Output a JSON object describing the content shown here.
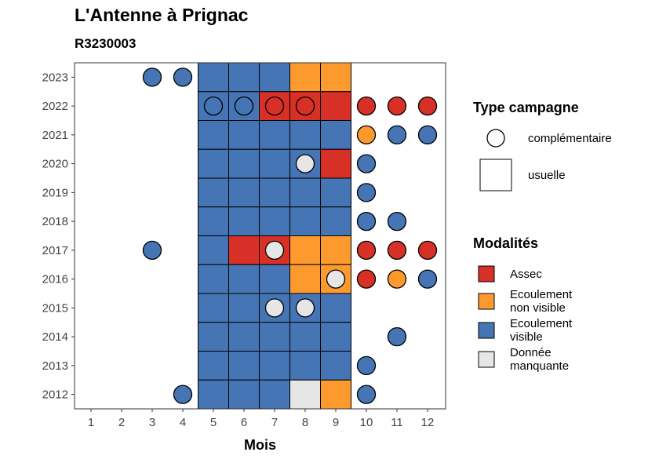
{
  "chart_data": {
    "type": "heatmap",
    "title": "L'Antenne à Prignac",
    "subtitle": "R3230003",
    "xlabel": "Mois",
    "ylabel": "",
    "months": [
      1,
      2,
      3,
      4,
      5,
      6,
      7,
      8,
      9,
      10,
      11,
      12
    ],
    "years": [
      2012,
      2013,
      2014,
      2015,
      2016,
      2017,
      2018,
      2019,
      2020,
      2021,
      2022,
      2023
    ],
    "usual_months": [
      5,
      6,
      7,
      8,
      9
    ],
    "legend_type": {
      "title": "Type campagne",
      "items": [
        {
          "key": "complementaire",
          "label": "complémentaire",
          "shape": "circle"
        },
        {
          "key": "usuelle",
          "label": "usuelle",
          "shape": "square"
        }
      ]
    },
    "legend_modalites": {
      "title": "Modalités",
      "items": [
        {
          "key": "assec",
          "lines": [
            "Assec"
          ],
          "color": "#d73027"
        },
        {
          "key": "non_visible",
          "lines": [
            "Ecoulement",
            "non visible"
          ],
          "color": "#fd9a2e"
        },
        {
          "key": "visible",
          "lines": [
            "Ecoulement",
            "visible"
          ],
          "color": "#4575b4"
        },
        {
          "key": "manquante",
          "lines": [
            "Donnée",
            "manquante"
          ],
          "color": "#e6e6e6"
        }
      ]
    },
    "observations": [
      {
        "year": 2023,
        "month": 3,
        "type": "complementaire",
        "modalite": "visible"
      },
      {
        "year": 2023,
        "month": 4,
        "type": "complementaire",
        "modalite": "visible"
      },
      {
        "year": 2023,
        "month": 5,
        "type": "usuelle",
        "modalite": "visible"
      },
      {
        "year": 2023,
        "month": 6,
        "type": "usuelle",
        "modalite": "visible"
      },
      {
        "year": 2023,
        "month": 7,
        "type": "usuelle",
        "modalite": "visible"
      },
      {
        "year": 2023,
        "month": 8,
        "type": "usuelle",
        "modalite": "non_visible"
      },
      {
        "year": 2023,
        "month": 9,
        "type": "usuelle",
        "modalite": "non_visible"
      },
      {
        "year": 2022,
        "month": 5,
        "type": "usuelle",
        "modalite": "visible"
      },
      {
        "year": 2022,
        "month": 6,
        "type": "usuelle",
        "modalite": "visible"
      },
      {
        "year": 2022,
        "month": 7,
        "type": "usuelle",
        "modalite": "assec"
      },
      {
        "year": 2022,
        "month": 8,
        "type": "usuelle",
        "modalite": "assec"
      },
      {
        "year": 2022,
        "month": 9,
        "type": "usuelle",
        "modalite": "assec"
      },
      {
        "year": 2022,
        "month": 5,
        "type": "complementaire",
        "modalite": "visible"
      },
      {
        "year": 2022,
        "month": 6,
        "type": "complementaire",
        "modalite": "visible"
      },
      {
        "year": 2022,
        "month": 7,
        "type": "complementaire",
        "modalite": "assec"
      },
      {
        "year": 2022,
        "month": 8,
        "type": "complementaire",
        "modalite": "assec"
      },
      {
        "year": 2022,
        "month": 10,
        "type": "complementaire",
        "modalite": "assec"
      },
      {
        "year": 2022,
        "month": 11,
        "type": "complementaire",
        "modalite": "assec"
      },
      {
        "year": 2022,
        "month": 12,
        "type": "complementaire",
        "modalite": "assec"
      },
      {
        "year": 2021,
        "month": 5,
        "type": "usuelle",
        "modalite": "visible"
      },
      {
        "year": 2021,
        "month": 6,
        "type": "usuelle",
        "modalite": "visible"
      },
      {
        "year": 2021,
        "month": 7,
        "type": "usuelle",
        "modalite": "visible"
      },
      {
        "year": 2021,
        "month": 8,
        "type": "usuelle",
        "modalite": "visible"
      },
      {
        "year": 2021,
        "month": 9,
        "type": "usuelle",
        "modalite": "visible"
      },
      {
        "year": 2021,
        "month": 10,
        "type": "complementaire",
        "modalite": "non_visible"
      },
      {
        "year": 2021,
        "month": 11,
        "type": "complementaire",
        "modalite": "visible"
      },
      {
        "year": 2021,
        "month": 12,
        "type": "complementaire",
        "modalite": "visible"
      },
      {
        "year": 2020,
        "month": 5,
        "type": "usuelle",
        "modalite": "visible"
      },
      {
        "year": 2020,
        "month": 6,
        "type": "usuelle",
        "modalite": "visible"
      },
      {
        "year": 2020,
        "month": 7,
        "type": "usuelle",
        "modalite": "visible"
      },
      {
        "year": 2020,
        "month": 8,
        "type": "usuelle",
        "modalite": "visible"
      },
      {
        "year": 2020,
        "month": 9,
        "type": "usuelle",
        "modalite": "assec"
      },
      {
        "year": 2020,
        "month": 8,
        "type": "complementaire",
        "modalite": "manquante"
      },
      {
        "year": 2020,
        "month": 10,
        "type": "complementaire",
        "modalite": "visible"
      },
      {
        "year": 2019,
        "month": 5,
        "type": "usuelle",
        "modalite": "visible"
      },
      {
        "year": 2019,
        "month": 6,
        "type": "usuelle",
        "modalite": "visible"
      },
      {
        "year": 2019,
        "month": 7,
        "type": "usuelle",
        "modalite": "visible"
      },
      {
        "year": 2019,
        "month": 8,
        "type": "usuelle",
        "modalite": "visible"
      },
      {
        "year": 2019,
        "month": 9,
        "type": "usuelle",
        "modalite": "visible"
      },
      {
        "year": 2019,
        "month": 10,
        "type": "complementaire",
        "modalite": "visible"
      },
      {
        "year": 2018,
        "month": 5,
        "type": "usuelle",
        "modalite": "visible"
      },
      {
        "year": 2018,
        "month": 6,
        "type": "usuelle",
        "modalite": "visible"
      },
      {
        "year": 2018,
        "month": 7,
        "type": "usuelle",
        "modalite": "visible"
      },
      {
        "year": 2018,
        "month": 8,
        "type": "usuelle",
        "modalite": "visible"
      },
      {
        "year": 2018,
        "month": 9,
        "type": "usuelle",
        "modalite": "visible"
      },
      {
        "year": 2018,
        "month": 10,
        "type": "complementaire",
        "modalite": "visible"
      },
      {
        "year": 2018,
        "month": 11,
        "type": "complementaire",
        "modalite": "visible"
      },
      {
        "year": 2017,
        "month": 3,
        "type": "complementaire",
        "modalite": "visible"
      },
      {
        "year": 2017,
        "month": 5,
        "type": "usuelle",
        "modalite": "visible"
      },
      {
        "year": 2017,
        "month": 6,
        "type": "usuelle",
        "modalite": "assec"
      },
      {
        "year": 2017,
        "month": 7,
        "type": "usuelle",
        "modalite": "assec"
      },
      {
        "year": 2017,
        "month": 8,
        "type": "usuelle",
        "modalite": "non_visible"
      },
      {
        "year": 2017,
        "month": 9,
        "type": "usuelle",
        "modalite": "non_visible"
      },
      {
        "year": 2017,
        "month": 7,
        "type": "complementaire",
        "modalite": "manquante"
      },
      {
        "year": 2017,
        "month": 10,
        "type": "complementaire",
        "modalite": "assec"
      },
      {
        "year": 2017,
        "month": 11,
        "type": "complementaire",
        "modalite": "assec"
      },
      {
        "year": 2017,
        "month": 12,
        "type": "complementaire",
        "modalite": "assec"
      },
      {
        "year": 2016,
        "month": 5,
        "type": "usuelle",
        "modalite": "visible"
      },
      {
        "year": 2016,
        "month": 6,
        "type": "usuelle",
        "modalite": "visible"
      },
      {
        "year": 2016,
        "month": 7,
        "type": "usuelle",
        "modalite": "visible"
      },
      {
        "year": 2016,
        "month": 8,
        "type": "usuelle",
        "modalite": "non_visible"
      },
      {
        "year": 2016,
        "month": 9,
        "type": "usuelle",
        "modalite": "non_visible"
      },
      {
        "year": 2016,
        "month": 9,
        "type": "complementaire",
        "modalite": "manquante"
      },
      {
        "year": 2016,
        "month": 10,
        "type": "complementaire",
        "modalite": "assec"
      },
      {
        "year": 2016,
        "month": 11,
        "type": "complementaire",
        "modalite": "non_visible"
      },
      {
        "year": 2016,
        "month": 12,
        "type": "complementaire",
        "modalite": "visible"
      },
      {
        "year": 2015,
        "month": 5,
        "type": "usuelle",
        "modalite": "visible"
      },
      {
        "year": 2015,
        "month": 6,
        "type": "usuelle",
        "modalite": "visible"
      },
      {
        "year": 2015,
        "month": 7,
        "type": "usuelle",
        "modalite": "visible"
      },
      {
        "year": 2015,
        "month": 8,
        "type": "usuelle",
        "modalite": "visible"
      },
      {
        "year": 2015,
        "month": 9,
        "type": "usuelle",
        "modalite": "visible"
      },
      {
        "year": 2015,
        "month": 7,
        "type": "complementaire",
        "modalite": "manquante"
      },
      {
        "year": 2015,
        "month": 8,
        "type": "complementaire",
        "modalite": "manquante"
      },
      {
        "year": 2014,
        "month": 5,
        "type": "usuelle",
        "modalite": "visible"
      },
      {
        "year": 2014,
        "month": 6,
        "type": "usuelle",
        "modalite": "visible"
      },
      {
        "year": 2014,
        "month": 7,
        "type": "usuelle",
        "modalite": "visible"
      },
      {
        "year": 2014,
        "month": 8,
        "type": "usuelle",
        "modalite": "visible"
      },
      {
        "year": 2014,
        "month": 9,
        "type": "usuelle",
        "modalite": "visible"
      },
      {
        "year": 2014,
        "month": 11,
        "type": "complementaire",
        "modalite": "visible"
      },
      {
        "year": 2013,
        "month": 5,
        "type": "usuelle",
        "modalite": "visible"
      },
      {
        "year": 2013,
        "month": 6,
        "type": "usuelle",
        "modalite": "visible"
      },
      {
        "year": 2013,
        "month": 7,
        "type": "usuelle",
        "modalite": "visible"
      },
      {
        "year": 2013,
        "month": 8,
        "type": "usuelle",
        "modalite": "visible"
      },
      {
        "year": 2013,
        "month": 9,
        "type": "usuelle",
        "modalite": "visible"
      },
      {
        "year": 2013,
        "month": 10,
        "type": "complementaire",
        "modalite": "visible"
      },
      {
        "year": 2012,
        "month": 4,
        "type": "complementaire",
        "modalite": "visible"
      },
      {
        "year": 2012,
        "month": 5,
        "type": "usuelle",
        "modalite": "visible"
      },
      {
        "year": 2012,
        "month": 6,
        "type": "usuelle",
        "modalite": "visible"
      },
      {
        "year": 2012,
        "month": 7,
        "type": "usuelle",
        "modalite": "visible"
      },
      {
        "year": 2012,
        "month": 8,
        "type": "usuelle",
        "modalite": "manquante"
      },
      {
        "year": 2012,
        "month": 9,
        "type": "usuelle",
        "modalite": "non_visible"
      },
      {
        "year": 2012,
        "month": 10,
        "type": "complementaire",
        "modalite": "visible"
      }
    ]
  }
}
